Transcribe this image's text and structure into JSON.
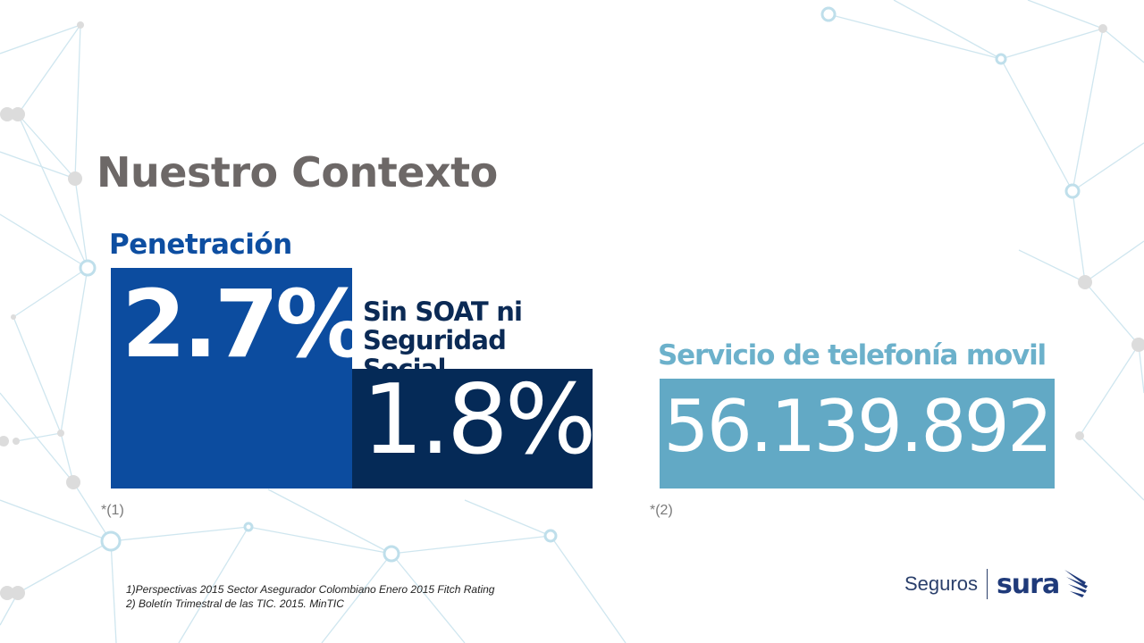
{
  "slide": {
    "title": "Nuestro Contexto"
  },
  "penetracion": {
    "label": "Penetración",
    "value_total": "2.7%",
    "sub_label": "Sin SOAT ni Seguridad Social",
    "value_sub": "1.8%",
    "note": "*(1)"
  },
  "telefonia": {
    "label": "Servicio de telefonía movil",
    "value": "56.139.892",
    "note": "*(2)"
  },
  "sources": {
    "line1": "1)Perspectivas 2015 Sector Asegurador Colombiano Enero 2015 Fitch Rating",
    "line2": "2) Boletín Trimestral de las TIC. 2015. MinTIC"
  },
  "brand": {
    "seguros": "Seguros",
    "sura": "sura",
    "logo_icon": "sura-wing-icon"
  },
  "colors": {
    "title": "#6d6867",
    "penetracion_blue": "#0c4c9f",
    "navy": "#052a57",
    "light_blue": "#62a9c5"
  }
}
